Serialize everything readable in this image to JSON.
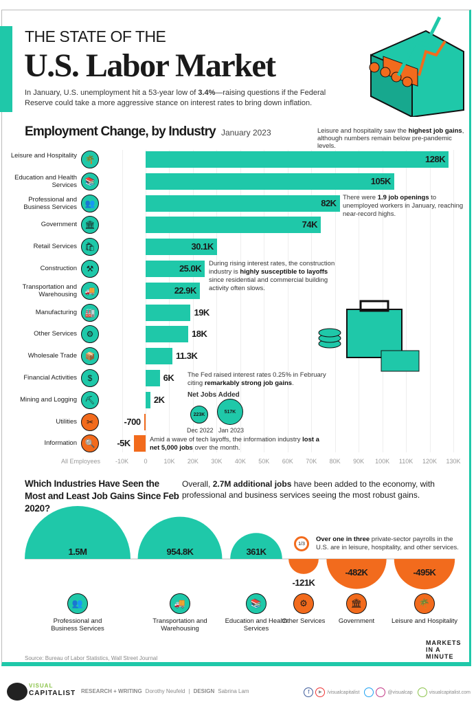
{
  "header": {
    "kicker": "THE STATE OF THE",
    "title": "U.S. Labor Market",
    "intro": {
      "pre": "In January, U.S. unemployment hit a 53-year low of ",
      "bold": "3.4%",
      "post": "—raising questions if the Federal Reserve could take a more aggressive stance on interest rates to bring down inflation."
    }
  },
  "chart_data": [
    {
      "type": "bar",
      "orientation": "horizontal",
      "title": "Employment Change, by Industry",
      "subtitle": "January 2023",
      "ylabel": "All Employees",
      "categories": [
        "Leisure and Hospitality",
        "Education and Health Services",
        "Professional and Business Services",
        "Government",
        "Retail Services",
        "Construction",
        "Transportation and Warehousing",
        "Manufacturing",
        "Other Services",
        "Wholesale Trade",
        "Financial Activities",
        "Mining and Logging",
        "Utilities",
        "Information"
      ],
      "values": [
        128000,
        105000,
        82000,
        74000,
        30100,
        25000,
        22900,
        19000,
        18000,
        11300,
        6000,
        2000,
        -700,
        -5000
      ],
      "labels": [
        "128K",
        "105K",
        "82K",
        "74K",
        "30.1K",
        "25.0K",
        "22.9K",
        "19K",
        "18K",
        "11.3K",
        "6K",
        "2K",
        "-700",
        "-5K"
      ],
      "icons": [
        "palm-tree-icon",
        "books-icon",
        "people-icon",
        "bank-icon",
        "shopping-bag-icon",
        "crane-icon",
        "truck-icon",
        "factory-icon",
        "gear-icon",
        "delivery-truck-icon",
        "money-bag-icon",
        "shovel-icon",
        "tools-icon",
        "magnifier-icon"
      ],
      "xlim": [
        -10000,
        130000
      ],
      "ticks": [
        "-10K",
        "0",
        "10K",
        "20K",
        "30K",
        "40K",
        "50K",
        "60K",
        "70K",
        "80K",
        "90K",
        "100K",
        "110K",
        "120K",
        "130K"
      ],
      "grid": true,
      "colors": {
        "positive": "#1fc8a9",
        "negative": "#f26b1d"
      }
    },
    {
      "type": "bubble",
      "title": "Net Jobs Added",
      "categories": [
        "Dec 2022",
        "Jan 2023"
      ],
      "values": [
        223000,
        517000
      ],
      "labels": [
        "223K",
        "517K"
      ]
    },
    {
      "type": "semicircle",
      "title": "Which Industries Have Seen the Most and Least Job Gains Since Feb 2020?",
      "categories": [
        "Professional and Business Services",
        "Transportation and Warehousing",
        "Education and Health Services",
        "Other Services",
        "Government",
        "Leisure and Hospitality"
      ],
      "values": [
        1500000,
        954800,
        361000,
        -121000,
        -482000,
        -495000
      ],
      "labels": [
        "1.5M",
        "954.8K",
        "361K",
        "-121K",
        "-482K",
        "-495K"
      ],
      "icons": [
        "people-icon",
        "truck-icon",
        "books-icon",
        "gear-icon",
        "bank-icon",
        "palm-tree-icon"
      ]
    }
  ],
  "notes": {
    "leisure": {
      "pre": "Leisure and hospitality saw the ",
      "bold": "highest job gains",
      "post": ", although numbers remain below pre-pandemic levels."
    },
    "openings": {
      "pre": "There were ",
      "bold": "1.9 job openings",
      "post": " to unemployed workers in January, reaching near-record highs."
    },
    "construction": {
      "pre": "During rising interest rates, the construction industry is ",
      "bold": "highly susceptible to layoffs",
      "post": " since residential and commercial building activity often slows."
    },
    "fed": {
      "pre": "The Fed raised interest rates 0.25% in February citing ",
      "bold": "remarkably strong job gains",
      "post": "."
    },
    "info": {
      "pre": "Amid a wave of tech layoffs, the information industry ",
      "bold": "lost a net 5,000 jobs",
      "post": " over the month."
    },
    "overall": {
      "pre": "Overall, ",
      "bold": "2.7M additional jobs",
      "post": " have been added to the economy, with professional and business services seeing the most robust gains."
    },
    "third": {
      "badge": "1/3",
      "bold": "Over one in three",
      "post": " private-sector payrolls in the U.S. are in leisure, hospitality, and other services."
    }
  },
  "footer": {
    "source": "Source: Bureau of Labor Statistics, Wall Street Journal",
    "brand_top": "VISUAL",
    "brand": "CAPITALIST",
    "research_label": "RESEARCH + WRITING",
    "research": "Dorothy Neufeld",
    "design_label": "DESIGN",
    "design": "Sabrina Lam",
    "social1": "/visualcapitalist",
    "social2": "@visualcap",
    "site": "visualcapitalist.com",
    "markets_logo": "MARKETS IN A MINUTE"
  }
}
